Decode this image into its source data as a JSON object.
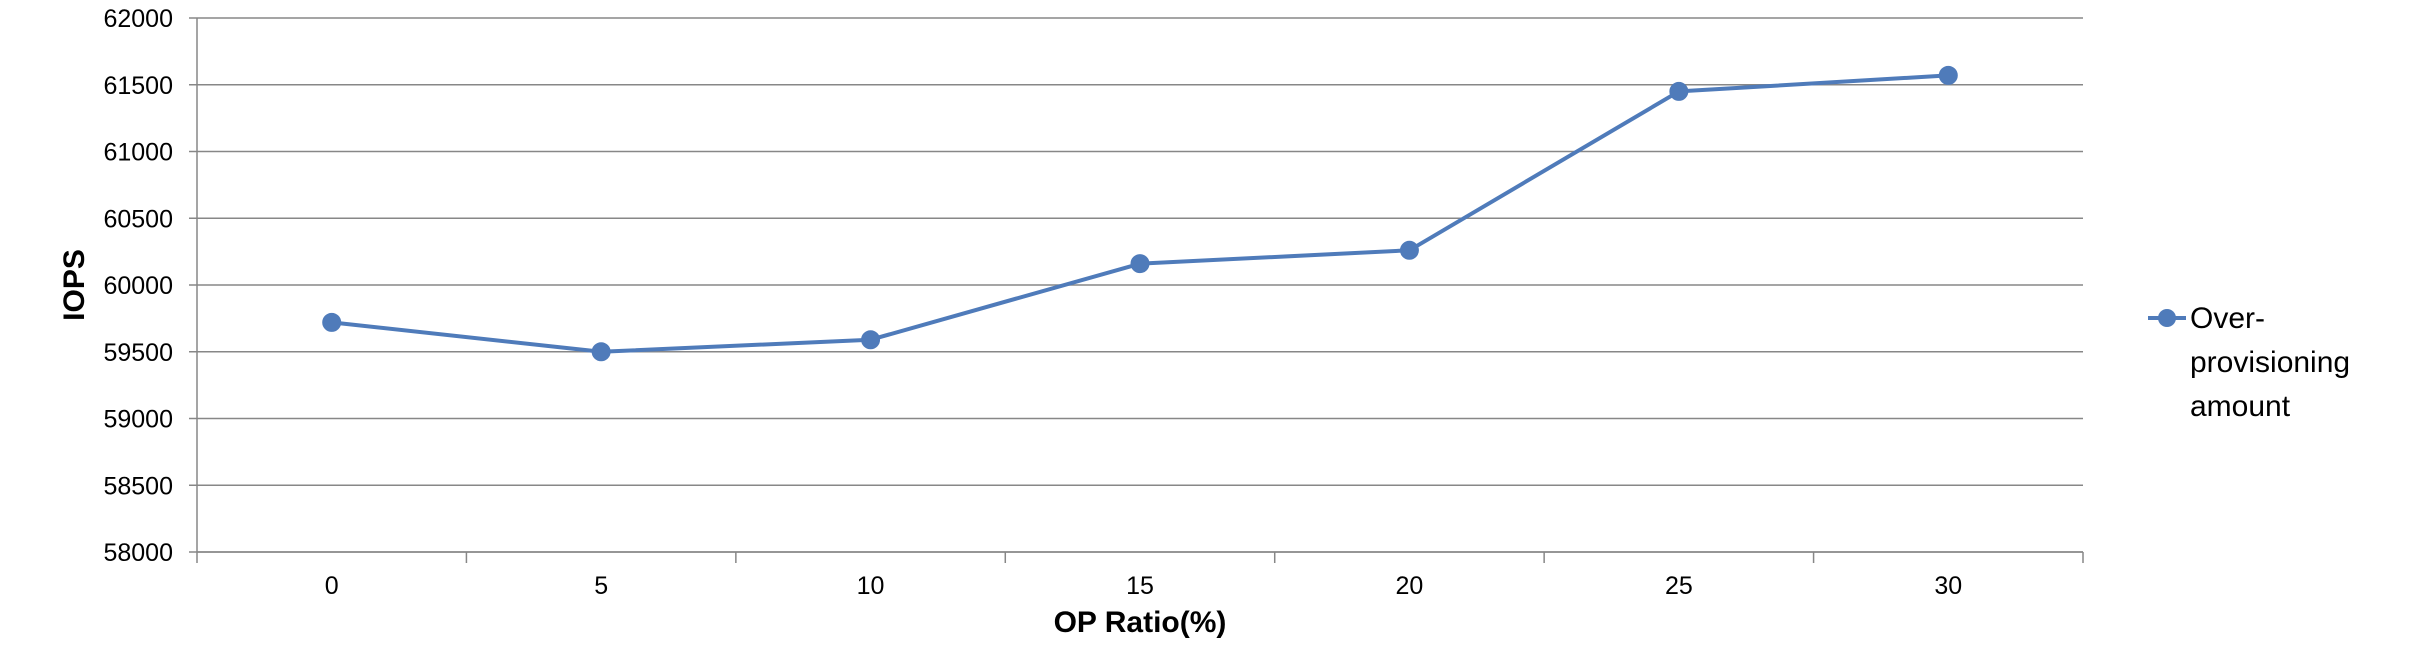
{
  "chart_data": {
    "type": "line",
    "title": "",
    "xlabel": "OP Ratio(%)",
    "ylabel": "IOPS",
    "categories": [
      "0",
      "5",
      "10",
      "15",
      "20",
      "25",
      "30"
    ],
    "series": [
      {
        "name": "Over-provisioning amount",
        "legend_lines": [
          "Over-",
          "provisioning",
          "amount"
        ],
        "values": [
          59720,
          59500,
          59590,
          60160,
          60260,
          61450,
          61570
        ],
        "color": "#4F7BBA",
        "marker": "circle"
      }
    ],
    "ylim": [
      58000,
      62000
    ],
    "yticks": [
      "58000",
      "58500",
      "59000",
      "59500",
      "60000",
      "60500",
      "61000",
      "61500",
      "62000"
    ],
    "grid": "horizontal",
    "legend_position": "right"
  }
}
